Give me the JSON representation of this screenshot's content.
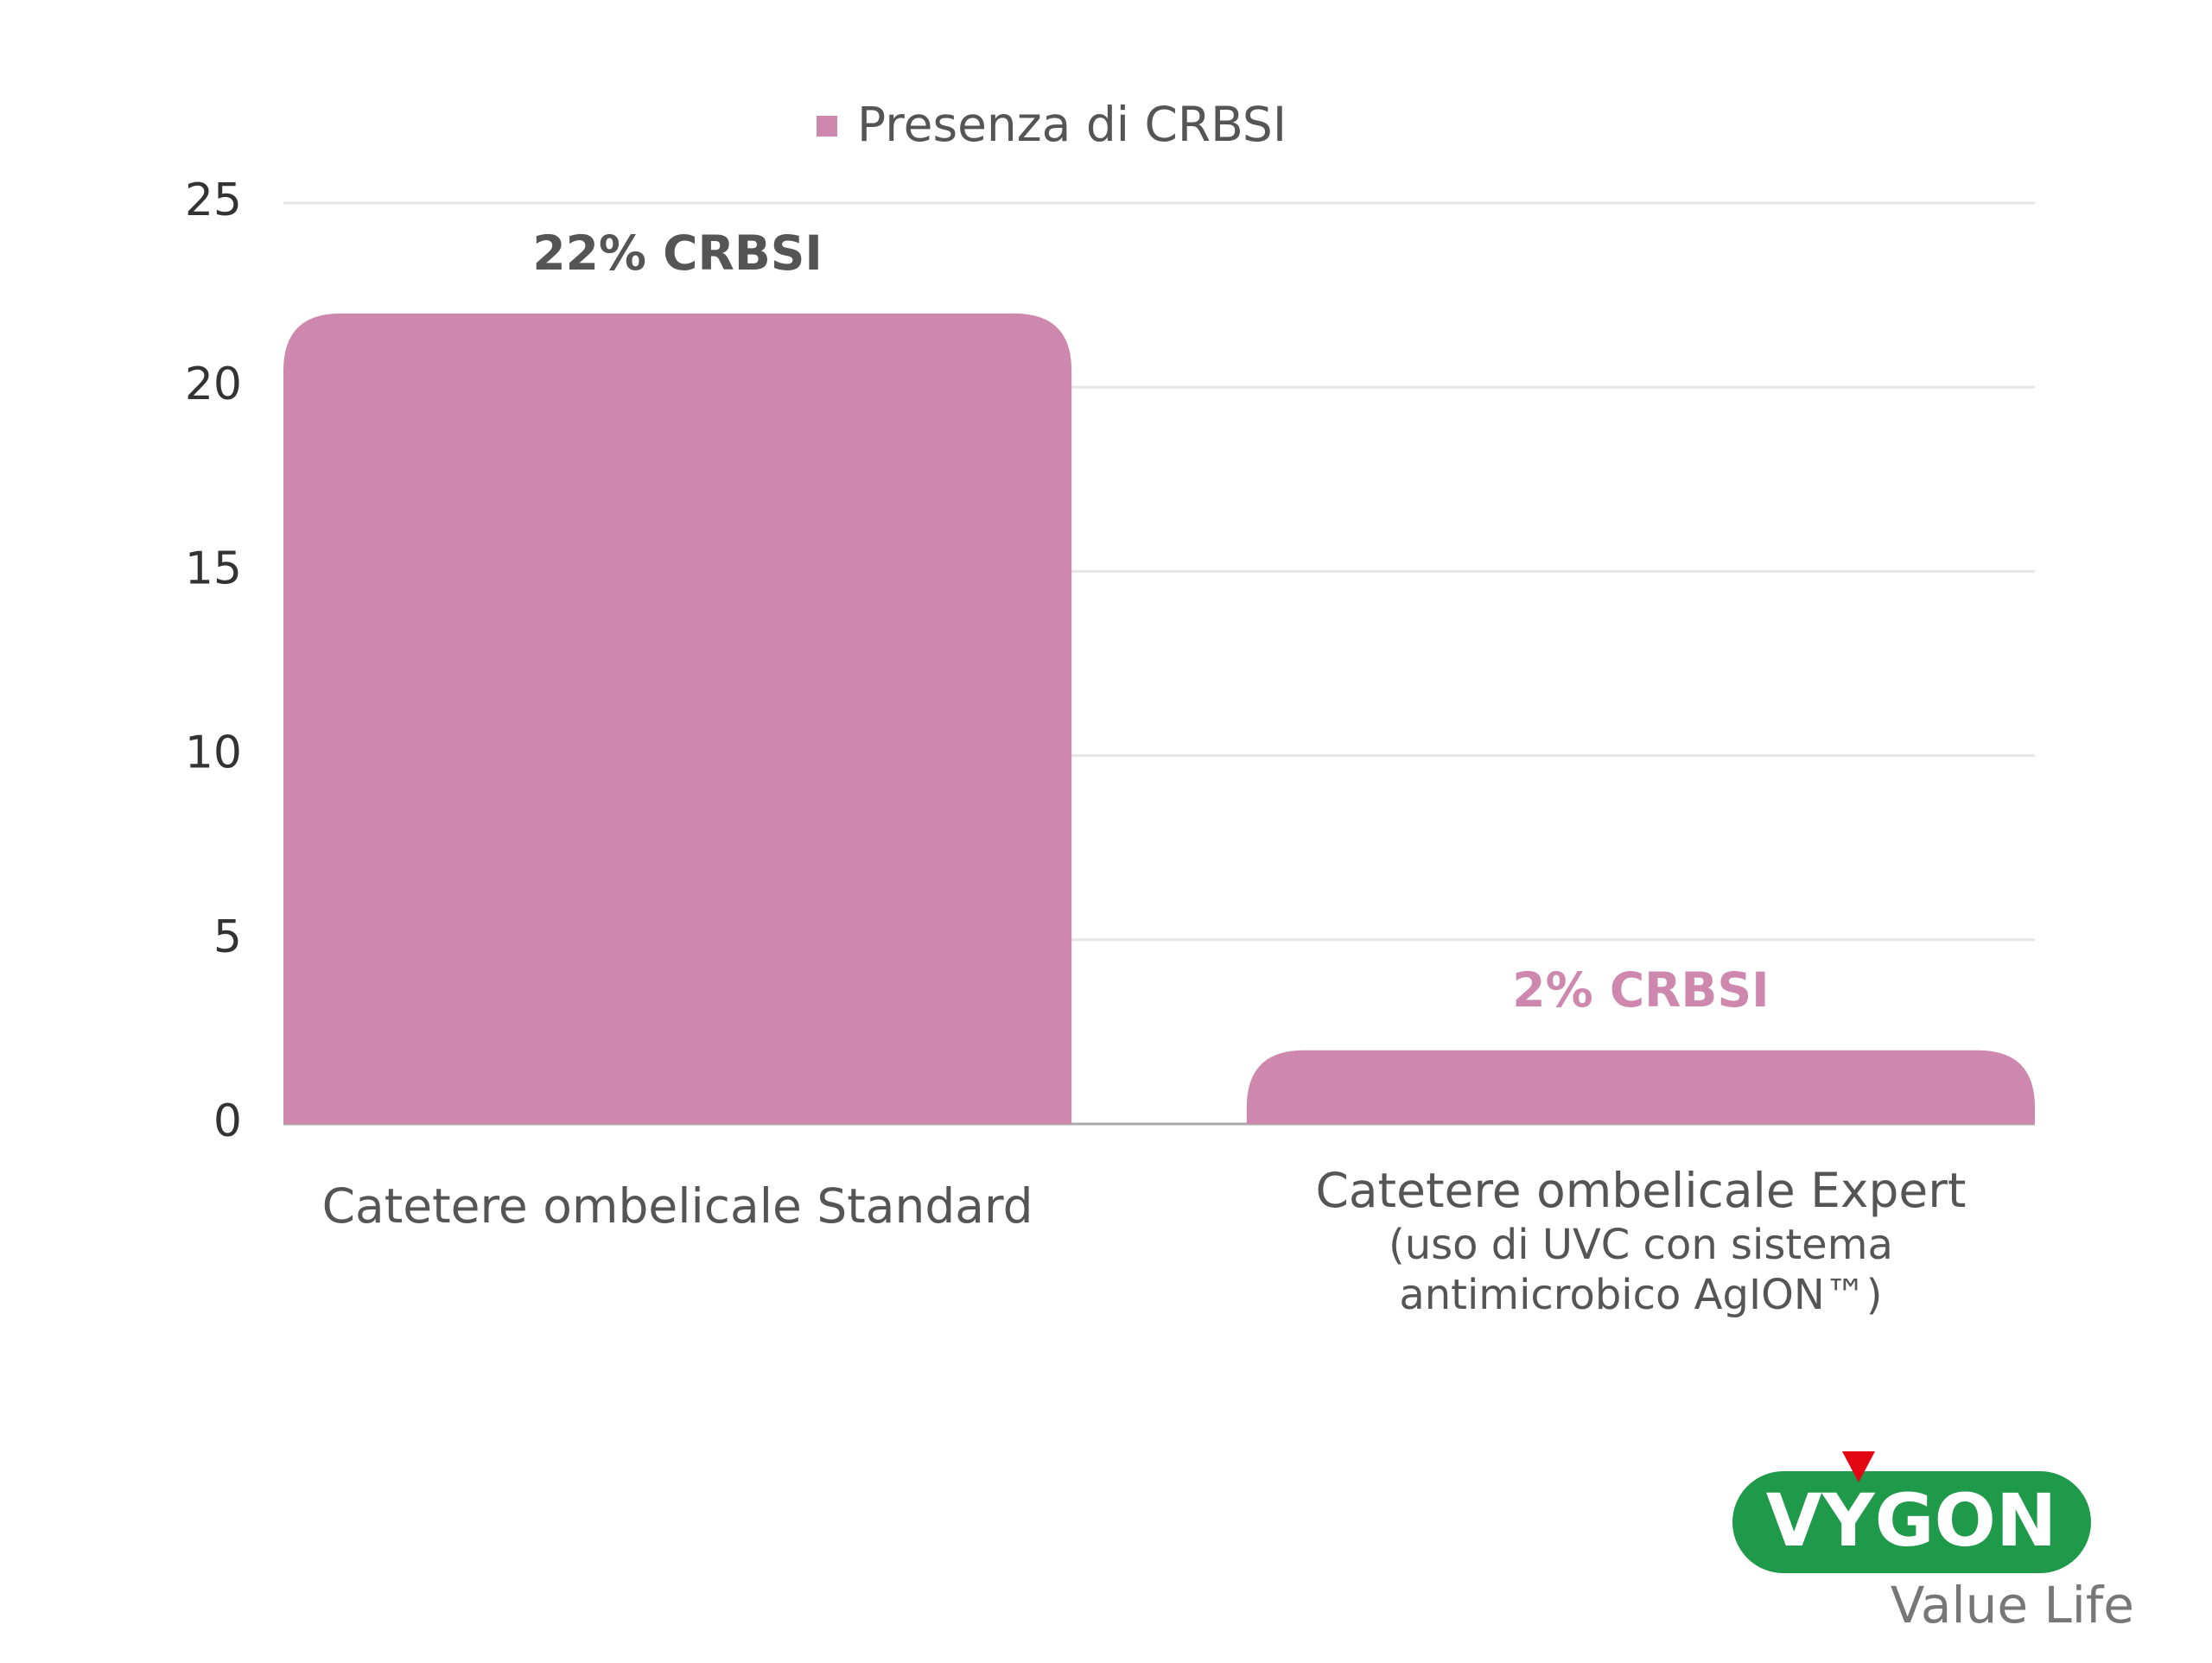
{
  "chart_data": {
    "type": "bar",
    "categories": [
      "Catetere ombelicale Standard",
      "Catetere ombelicale Expert"
    ],
    "category_notes": [
      null,
      [
        "(uso di UVC con sistema",
        "antimicrobico AgION™)"
      ]
    ],
    "series": [
      {
        "name": "Presenza di CRBSI",
        "color": "#cf88ad",
        "values": [
          22,
          2
        ],
        "value_labels": [
          "22% CRBSI",
          "2% CRBSI"
        ],
        "value_label_colors": [
          "#555555",
          "#cf88ad"
        ]
      }
    ],
    "ylim": [
      0,
      25
    ],
    "yticks": [
      0,
      5,
      10,
      15,
      20,
      25
    ],
    "grid": true,
    "legend": "top"
  },
  "logo": {
    "name": "VYGON",
    "tagline": "Value Life"
  }
}
